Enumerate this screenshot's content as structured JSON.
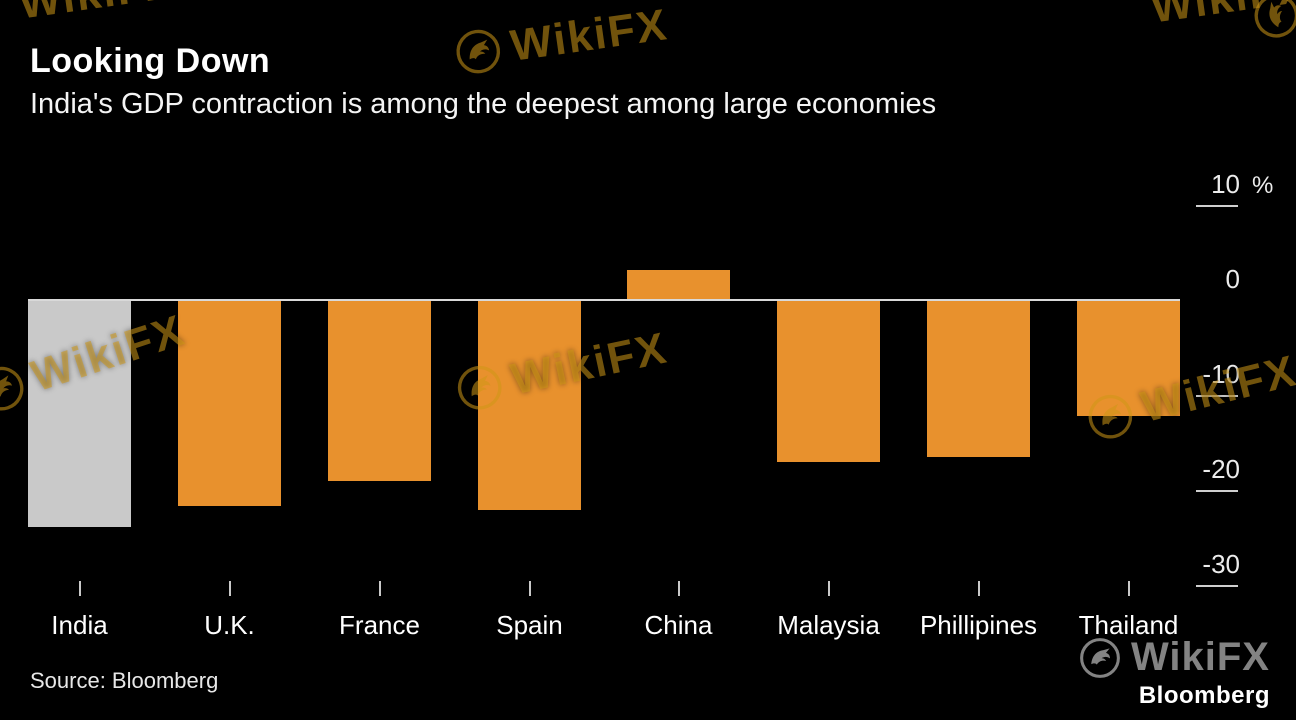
{
  "header": {
    "title": "Looking Down",
    "subtitle": "India's GDP contraction is among the deepest among large economies"
  },
  "chart_data": {
    "type": "bar",
    "title": "Looking Down",
    "subtitle": "India's GDP contraction is among the deepest among large economies",
    "categories": [
      "India",
      "U.K.",
      "France",
      "Spain",
      "China",
      "Malaysia",
      "Phillipines",
      "Thailand"
    ],
    "values": [
      -23.9,
      -21.7,
      -19.0,
      -22.1,
      3.2,
      -17.1,
      -16.5,
      -12.2
    ],
    "xlabel": "",
    "ylabel": "%",
    "unit_label": "%",
    "ylim": [
      -30,
      10
    ],
    "yticks": [
      10,
      0,
      -10,
      -20,
      -30
    ],
    "ytick_labels": [
      "10",
      "0",
      "-10",
      "-20",
      "-30"
    ],
    "bar_color": "#e8912d",
    "highlight_category": "India",
    "highlight_color": "#c9c9c9",
    "grid": false,
    "legend": "none",
    "axis_position": "right"
  },
  "footer": {
    "source": "Source: Bloomberg",
    "brand": "Bloomberg"
  },
  "watermark": {
    "text": "WikiFX"
  }
}
